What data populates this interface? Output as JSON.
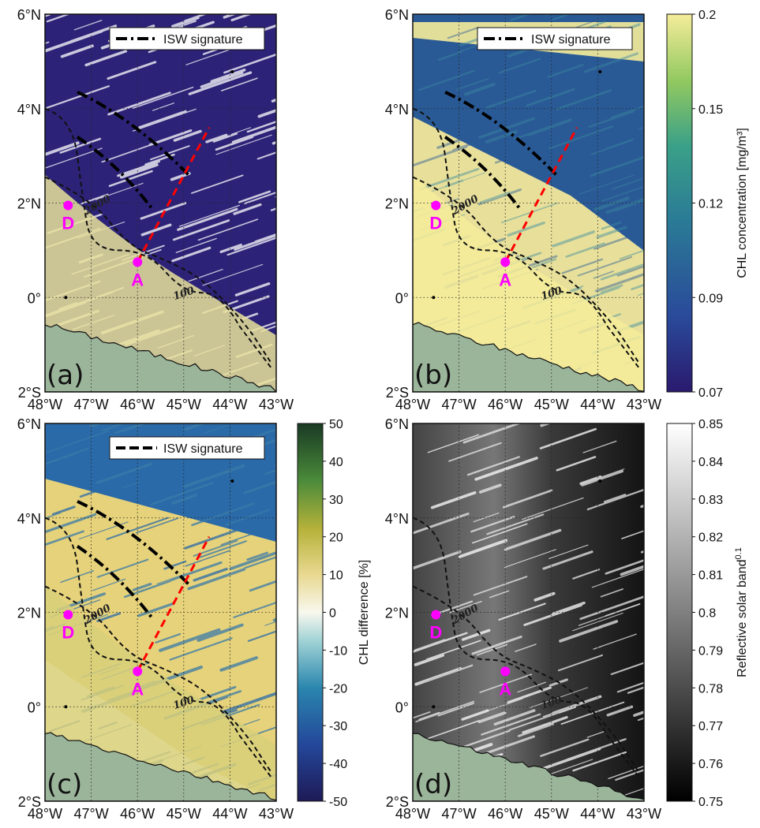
{
  "map": {
    "lon_ticks": [
      "48°W",
      "47°W",
      "46°W",
      "45°W",
      "44°W",
      "43°W"
    ],
    "lat_ticks": [
      "6°N",
      "4°N",
      "2°N",
      "0°",
      "2°S"
    ],
    "lon_range": [
      -48,
      -43
    ],
    "lat_range": [
      -2,
      6
    ],
    "points": [
      {
        "name": "D",
        "lon": -47.5,
        "lat": 1.95
      },
      {
        "name": "A",
        "lon": -46.0,
        "lat": 0.75
      }
    ],
    "contour_labels": [
      "2000",
      "100"
    ],
    "legend_label": "ISW signature",
    "transect_color": "#ff0000",
    "point_color": "#ff00ff",
    "land_color": "#9bb59a"
  },
  "panels": [
    {
      "letter": "(a)",
      "layer": "Raw CHL concentration",
      "legend": true
    },
    {
      "letter": "(b)",
      "layer": "CHL concentration",
      "legend": true
    },
    {
      "letter": "(c)",
      "layer": "CHL difference",
      "legend": true
    },
    {
      "letter": "(d)",
      "layer": "Reflective solar band",
      "legend": false
    }
  ],
  "colorbars": [
    {
      "id": "chl",
      "label": "CHL concentration [mg/m³]",
      "ticks": [
        "0.2",
        "0.15",
        "0.12",
        "0.09",
        "0.07"
      ],
      "range": [
        0.07,
        0.2
      ]
    },
    {
      "id": "diff",
      "label": "CHL difference [%]",
      "ticks": [
        "50",
        "40",
        "30",
        "20",
        "10",
        "0",
        "-10",
        "-20",
        "-30",
        "-40",
        "-50"
      ],
      "range": [
        -50,
        50
      ]
    },
    {
      "id": "rsb",
      "label": "Reflective solar band",
      "label_sup": "0.1",
      "ticks": [
        "0.85",
        "0.84",
        "0.83",
        "0.82",
        "0.81",
        "0.8",
        "0.79",
        "0.78",
        "0.77",
        "0.76",
        "0.75"
      ],
      "range": [
        0.75,
        0.85
      ]
    }
  ]
}
